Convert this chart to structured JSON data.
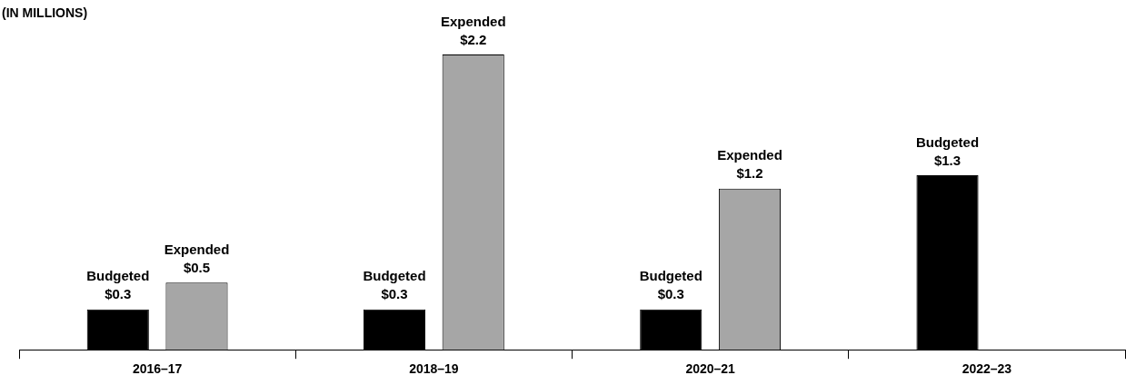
{
  "chart_data": {
    "type": "bar",
    "ylabel": "(IN MILLIONS)",
    "categories": [
      "2016–17",
      "2018–19",
      "2020–21",
      "2022–23"
    ],
    "series": [
      {
        "name": "Budgeted",
        "color": "#000000",
        "values": [
          0.3,
          0.3,
          0.3,
          1.3
        ],
        "value_labels": [
          "$0.3",
          "$0.3",
          "$0.3",
          "$1.3"
        ]
      },
      {
        "name": "Expended",
        "color": "#a6a6a6",
        "values": [
          0.5,
          2.2,
          1.2,
          null
        ],
        "value_labels": [
          "$0.5",
          "$2.2",
          "$1.2",
          null
        ]
      }
    ],
    "grid": false,
    "legend": false
  }
}
